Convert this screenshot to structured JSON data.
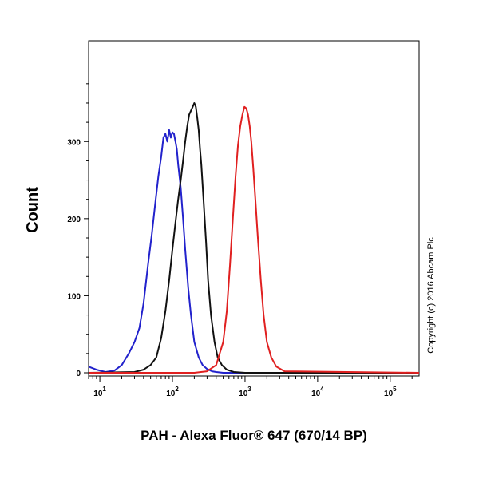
{
  "chart_data": {
    "type": "line",
    "xlabel": "PAH - Alexa Fluor® 647 (670/14 BP)",
    "ylabel": "Count",
    "x_scale": "log",
    "xlim": [
      7,
      250000
    ],
    "ylim": [
      0,
      380
    ],
    "x_ticks": [
      {
        "value": 10,
        "base": "10",
        "exp": "1"
      },
      {
        "value": 100,
        "base": "10",
        "exp": "2"
      },
      {
        "value": 1000,
        "base": "10",
        "exp": "3"
      },
      {
        "value": 10000,
        "base": "10",
        "exp": "4"
      },
      {
        "value": 100000,
        "base": "10",
        "exp": "5"
      }
    ],
    "y_ticks": [
      0,
      100,
      200,
      300
    ],
    "annotation": "Copyright (c) 2016 Abcam Plc",
    "grid": false,
    "series": [
      {
        "color": "#2222cc",
        "x": [
          7,
          9,
          12,
          16,
          20,
          25,
          30,
          35,
          40,
          46,
          52,
          58,
          64,
          70,
          75,
          80,
          85,
          90,
          95,
          100,
          105,
          110,
          115,
          120,
          130,
          140,
          150,
          165,
          180,
          200,
          230,
          260,
          300,
          350,
          400,
          500,
          700,
          1000,
          250000
        ],
        "y": [
          8,
          4,
          1,
          3,
          10,
          25,
          40,
          58,
          90,
          140,
          180,
          220,
          255,
          280,
          305,
          310,
          300,
          315,
          305,
          312,
          310,
          300,
          290,
          270,
          240,
          200,
          160,
          110,
          75,
          40,
          20,
          10,
          5,
          2,
          1,
          0,
          0,
          0,
          0
        ]
      },
      {
        "color": "#111111",
        "x": [
          7,
          30,
          40,
          50,
          60,
          70,
          80,
          90,
          100,
          110,
          120,
          130,
          140,
          150,
          160,
          170,
          180,
          190,
          200,
          210,
          220,
          230,
          240,
          250,
          270,
          290,
          310,
          340,
          380,
          420,
          480,
          560,
          700,
          1000,
          250000
        ],
        "y": [
          0,
          1,
          4,
          10,
          20,
          45,
          80,
          120,
          160,
          195,
          225,
          250,
          275,
          300,
          320,
          335,
          340,
          345,
          350,
          345,
          330,
          315,
          290,
          270,
          220,
          170,
          120,
          75,
          40,
          20,
          10,
          4,
          1,
          0,
          0
        ]
      },
      {
        "color": "#e02020",
        "x": [
          7,
          200,
          300,
          400,
          500,
          560,
          620,
          680,
          740,
          800,
          860,
          920,
          980,
          1040,
          1100,
          1160,
          1220,
          1300,
          1400,
          1500,
          1650,
          1800,
          2000,
          2300,
          2700,
          3500,
          250000
        ],
        "y": [
          0,
          0,
          2,
          10,
          40,
          80,
          140,
          200,
          255,
          295,
          320,
          335,
          345,
          343,
          335,
          320,
          300,
          265,
          220,
          175,
          120,
          75,
          40,
          20,
          8,
          2,
          0
        ]
      }
    ]
  }
}
